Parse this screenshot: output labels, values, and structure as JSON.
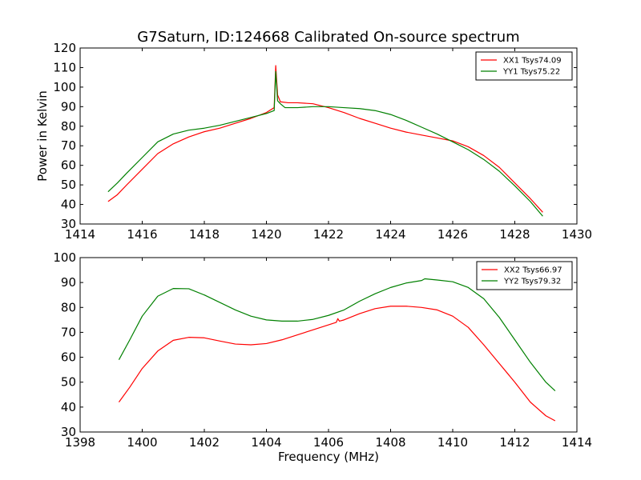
{
  "chart_data": [
    {
      "type": "line",
      "title": "G7Saturn, ID:124668 Calibrated On-source spectrum",
      "xlabel": "",
      "ylabel": "Power in Kelvin",
      "xlim": [
        1414,
        1430
      ],
      "ylim": [
        30,
        120
      ],
      "xticks": [
        1414,
        1416,
        1418,
        1420,
        1422,
        1424,
        1426,
        1428,
        1430
      ],
      "yticks": [
        30,
        40,
        50,
        60,
        70,
        80,
        90,
        100,
        110,
        120
      ],
      "legend_position": "top-right",
      "grid": false,
      "series": [
        {
          "name": "XX1 Tsys74.09",
          "color": "#ff0000",
          "points": [
            [
              1414.9,
              41.5
            ],
            [
              1415.2,
              45
            ],
            [
              1415.5,
              50
            ],
            [
              1416,
              58
            ],
            [
              1416.5,
              66
            ],
            [
              1417,
              71
            ],
            [
              1417.5,
              74.5
            ],
            [
              1418,
              77.2
            ],
            [
              1418.5,
              79
            ],
            [
              1419,
              81.5
            ],
            [
              1419.5,
              84
            ],
            [
              1420,
              87
            ],
            [
              1420.25,
              89.5
            ],
            [
              1420.3,
              111
            ],
            [
              1420.36,
              96
            ],
            [
              1420.45,
              92.5
            ],
            [
              1420.7,
              92
            ],
            [
              1421,
              92
            ],
            [
              1421.5,
              91.5
            ],
            [
              1422,
              89.5
            ],
            [
              1422.5,
              87
            ],
            [
              1423,
              84
            ],
            [
              1423.5,
              81.5
            ],
            [
              1424,
              79
            ],
            [
              1424.5,
              77
            ],
            [
              1425,
              75.5
            ],
            [
              1425.5,
              74
            ],
            [
              1426,
              72.5
            ],
            [
              1426.5,
              69.5
            ],
            [
              1427,
              65
            ],
            [
              1427.5,
              59
            ],
            [
              1428,
              51
            ],
            [
              1428.5,
              43
            ],
            [
              1428.9,
              36
            ]
          ]
        },
        {
          "name": "YY1 Tsys75.22",
          "color": "#008000",
          "points": [
            [
              1414.9,
              46.5
            ],
            [
              1415.2,
              51
            ],
            [
              1415.5,
              56
            ],
            [
              1416,
              64
            ],
            [
              1416.5,
              72
            ],
            [
              1417,
              76
            ],
            [
              1417.5,
              78
            ],
            [
              1418,
              79
            ],
            [
              1418.5,
              80.5
            ],
            [
              1419,
              82.5
            ],
            [
              1419.5,
              84.5
            ],
            [
              1420,
              86.5
            ],
            [
              1420.25,
              88
            ],
            [
              1420.3,
              108
            ],
            [
              1420.36,
              93
            ],
            [
              1420.45,
              91.5
            ],
            [
              1420.6,
              89.5
            ],
            [
              1421,
              89.5
            ],
            [
              1421.5,
              90
            ],
            [
              1422,
              90
            ],
            [
              1422.5,
              89.5
            ],
            [
              1423,
              89
            ],
            [
              1423.5,
              88
            ],
            [
              1424,
              86
            ],
            [
              1424.5,
              83
            ],
            [
              1425,
              79.5
            ],
            [
              1425.5,
              76
            ],
            [
              1426,
              72
            ],
            [
              1426.5,
              68
            ],
            [
              1427,
              63
            ],
            [
              1427.5,
              57
            ],
            [
              1428,
              49.5
            ],
            [
              1428.5,
              41.5
            ],
            [
              1428.9,
              34
            ]
          ]
        }
      ]
    },
    {
      "type": "line",
      "title": "",
      "xlabel": "Frequency (MHz)",
      "ylabel": "",
      "xlim": [
        1398,
        1414
      ],
      "ylim": [
        30,
        100
      ],
      "xticks": [
        1398,
        1400,
        1402,
        1404,
        1406,
        1408,
        1410,
        1412,
        1414
      ],
      "yticks": [
        30,
        40,
        50,
        60,
        70,
        80,
        90,
        100
      ],
      "legend_position": "top-right",
      "grid": false,
      "series": [
        {
          "name": "XX2 Tsys66.97",
          "color": "#ff0000",
          "points": [
            [
              1399.25,
              42
            ],
            [
              1399.6,
              48
            ],
            [
              1400,
              55.5
            ],
            [
              1400.5,
              62.5
            ],
            [
              1401,
              66.8
            ],
            [
              1401.5,
              68
            ],
            [
              1402,
              67.8
            ],
            [
              1402.5,
              66.5
            ],
            [
              1403,
              65.3
            ],
            [
              1403.5,
              65
            ],
            [
              1404,
              65.5
            ],
            [
              1404.5,
              67
            ],
            [
              1405,
              69
            ],
            [
              1405.5,
              71
            ],
            [
              1406,
              73
            ],
            [
              1406.25,
              74
            ],
            [
              1406.3,
              75.5
            ],
            [
              1406.35,
              74.5
            ],
            [
              1406.5,
              75
            ],
            [
              1407,
              77.5
            ],
            [
              1407.5,
              79.5
            ],
            [
              1408,
              80.5
            ],
            [
              1408.5,
              80.5
            ],
            [
              1409,
              80
            ],
            [
              1409.5,
              79
            ],
            [
              1410,
              76.5
            ],
            [
              1410.5,
              72
            ],
            [
              1411,
              65
            ],
            [
              1411.5,
              57.5
            ],
            [
              1412,
              50
            ],
            [
              1412.5,
              42
            ],
            [
              1413,
              36.5
            ],
            [
              1413.3,
              34.5
            ]
          ]
        },
        {
          "name": "YY2 Tsys79.32",
          "color": "#008000",
          "points": [
            [
              1399.25,
              59
            ],
            [
              1399.6,
              67
            ],
            [
              1400,
              76.5
            ],
            [
              1400.5,
              84.5
            ],
            [
              1401,
              87.6
            ],
            [
              1401.5,
              87.5
            ],
            [
              1402,
              85
            ],
            [
              1402.5,
              82
            ],
            [
              1403,
              79
            ],
            [
              1403.5,
              76.5
            ],
            [
              1404,
              75
            ],
            [
              1404.5,
              74.5
            ],
            [
              1405,
              74.5
            ],
            [
              1405.5,
              75.2
            ],
            [
              1406,
              76.8
            ],
            [
              1406.5,
              79
            ],
            [
              1407,
              82.5
            ],
            [
              1407.5,
              85.5
            ],
            [
              1408,
              88
            ],
            [
              1408.5,
              89.8
            ],
            [
              1409,
              90.8
            ],
            [
              1409.1,
              91.5
            ],
            [
              1409.5,
              91
            ],
            [
              1410,
              90.3
            ],
            [
              1410.5,
              88
            ],
            [
              1411,
              83.5
            ],
            [
              1411.5,
              76
            ],
            [
              1412,
              67
            ],
            [
              1412.5,
              58
            ],
            [
              1413,
              50
            ],
            [
              1413.3,
              46.5
            ]
          ]
        }
      ]
    }
  ]
}
